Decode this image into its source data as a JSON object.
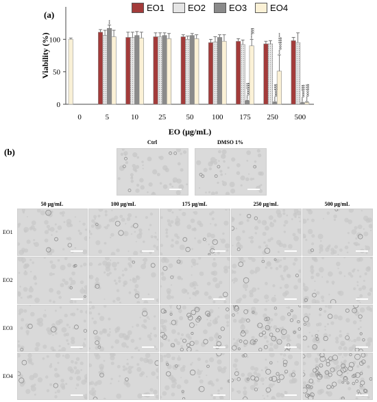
{
  "panel_a_label": "(a)",
  "panel_b_label": "(b)",
  "colors": {
    "EO1": "#a33b3a",
    "EO2": "#e5e5e5",
    "EO3": "#8a8a8a",
    "EO4": "#fbf1d6",
    "ctrl": "#f9f0d6"
  },
  "chart_data": {
    "type": "bar",
    "ylabel": "Viability (%)",
    "xlabel": "EO (μg/mL)",
    "ylim": [
      0,
      150
    ],
    "yticks": [
      "0",
      "50",
      "100"
    ],
    "categories": [
      "0",
      "5",
      "10",
      "25",
      "50",
      "100",
      "175",
      "250",
      "500"
    ],
    "series": [
      {
        "name": "EO1",
        "values": [
          null,
          111,
          103,
          104,
          104,
          95,
          97,
          93,
          98
        ],
        "errors": [
          null,
          4,
          8,
          6,
          3,
          5,
          4,
          4,
          5
        ]
      },
      {
        "name": "EO2",
        "values": [
          null,
          106,
          103,
          104,
          100,
          96,
          92,
          93,
          95
        ],
        "errors": [
          null,
          8,
          8,
          6,
          5,
          8,
          7,
          5,
          15
        ]
      },
      {
        "name": "EO3",
        "values": [
          null,
          117,
          106,
          106,
          106,
          103,
          5,
          3,
          2
        ],
        "errors": [
          null,
          5,
          6,
          4,
          3,
          4,
          1,
          1,
          1
        ]
      },
      {
        "name": "EO4",
        "values": [
          null,
          104,
          102,
          101,
          101,
          97,
          90,
          51,
          3
        ],
        "errors": [
          null,
          10,
          9,
          8,
          6,
          10,
          10,
          25,
          1
        ]
      }
    ],
    "control": {
      "category": "0",
      "value": 100,
      "error": 2
    },
    "annotations": [
      {
        "category": "5",
        "series": "EO3",
        "text": "***"
      },
      {
        "category": "175",
        "series": "EO3",
        "text": "***ooo§§§"
      },
      {
        "category": "175",
        "series": "EO4",
        "text": "***§§§"
      },
      {
        "category": "250",
        "series": "EO3",
        "text": "***ooo§§§"
      },
      {
        "category": "250",
        "series": "EO4",
        "text": "***ooo§§§***"
      },
      {
        "category": "500",
        "series": "EO3",
        "text": "***ooo§§§"
      },
      {
        "category": "500",
        "series": "EO4",
        "text": "***ooo§§§"
      }
    ]
  },
  "top_images": [
    {
      "label": "Ctrl"
    },
    {
      "label": "DMSO 1%"
    }
  ],
  "column_labels": [
    "50 μg/mL",
    "100 μg/mL",
    "175 μg/mL",
    "250 μg/mL",
    "500 μg/mL"
  ],
  "row_labels": [
    "EO1",
    "EO2",
    "EO3",
    "EO4"
  ]
}
